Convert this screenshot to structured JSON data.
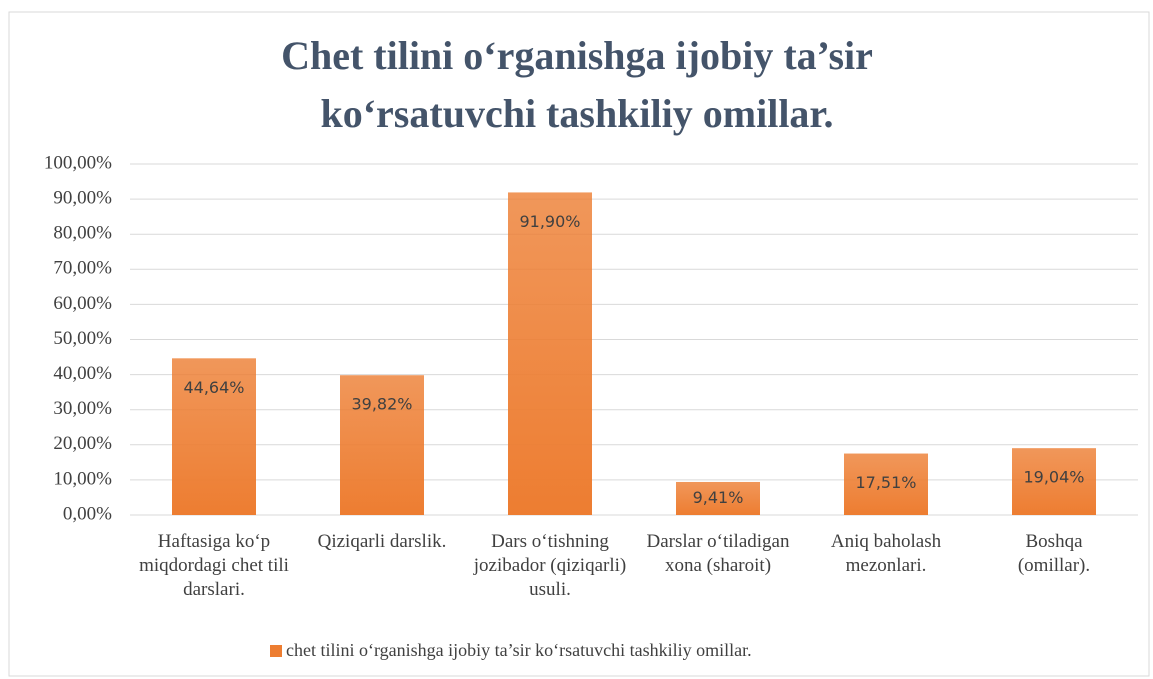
{
  "chart_data": {
    "type": "bar",
    "title": "Chet tilini o‘rganishga ijobiy ta’sir ko‘rsatuvchi tashkiliy omillar.",
    "categories": [
      "Haftasiga ko‘p miqdordagi chet tili darslari.",
      "Qiziqarli darslik.",
      "Dars o‘tishning jozibador (qiziqarli) usuli.",
      "Darslar o‘tiladigan xona (sharoit)",
      "Aniq baholash mezonlari.",
      "Boshqa (omillar)."
    ],
    "series": [
      {
        "name": "chet tilini o‘rganishga ijobiy ta’sir ko‘rsatuvchi tashkiliy omillar.",
        "color": "#ed7d31",
        "values": [
          44.64,
          39.82,
          91.9,
          9.41,
          17.51,
          19.04
        ],
        "value_labels": [
          "44,64%",
          "39,82%",
          "91,90%",
          "9,41%",
          "17,51%",
          "19,04%"
        ]
      }
    ],
    "ylim": [
      0,
      100
    ],
    "yticks": [
      {
        "value": 0,
        "label": "0,00%"
      },
      {
        "value": 10,
        "label": "10,00%"
      },
      {
        "value": 20,
        "label": "20,00%"
      },
      {
        "value": 30,
        "label": "30,00%"
      },
      {
        "value": 40,
        "label": "40,00%"
      },
      {
        "value": 50,
        "label": "50,00%"
      },
      {
        "value": 60,
        "label": "60,00%"
      },
      {
        "value": 70,
        "label": "70,00%"
      },
      {
        "value": 80,
        "label": "80,00%"
      },
      {
        "value": 90,
        "label": "90,00%"
      },
      {
        "value": 100,
        "label": "100,00%"
      }
    ],
    "grid": true,
    "legend": "bottom"
  }
}
